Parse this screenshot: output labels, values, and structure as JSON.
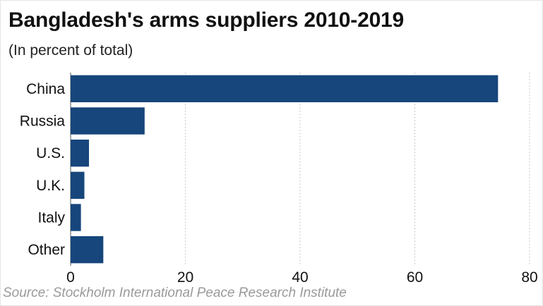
{
  "chart_data": {
    "type": "bar",
    "orientation": "horizontal",
    "title": "Bangladesh's arms suppliers 2010-2019",
    "subtitle": "(In percent of total)",
    "categories": [
      "China",
      "Russia",
      "U.S.",
      "U.K.",
      "Italy",
      "Other"
    ],
    "values": [
      74.5,
      12.9,
      3.2,
      2.4,
      1.8,
      5.7
    ],
    "xlim": [
      0,
      80
    ],
    "xticks": [
      0,
      20,
      40,
      60,
      80
    ],
    "grid": "vertical dotted",
    "bar_color": "#16467b",
    "source": "Source: Stockholm International Peace Research Institute"
  }
}
